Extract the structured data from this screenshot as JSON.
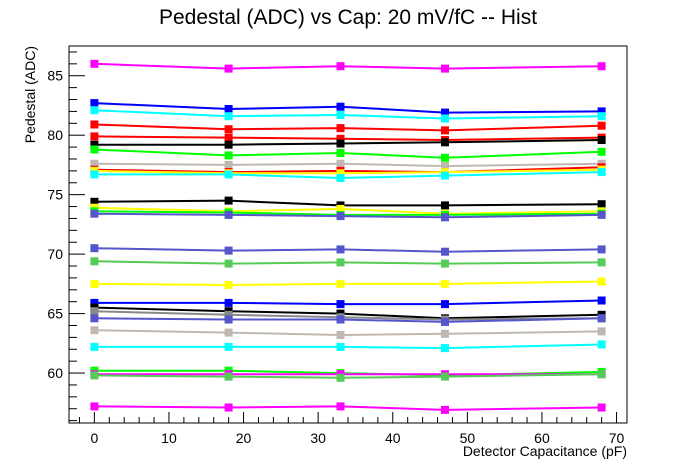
{
  "chart_data": {
    "type": "line",
    "title": "Pedestal (ADC) vs Cap: 20 mV/fC -- Hist",
    "xlabel": "Detector Capacitance (pF)",
    "ylabel": "Pedestal (ADC)",
    "xlim": [
      -3.4,
      71.4
    ],
    "ylim": [
      55.8,
      87.5
    ],
    "x": [
      0,
      18,
      33,
      47,
      68
    ],
    "xticks": [
      0,
      10,
      20,
      30,
      40,
      50,
      60,
      70
    ],
    "yticks": [
      60,
      65,
      70,
      75,
      80,
      85
    ],
    "grid": false,
    "legend": "none",
    "series": [
      {
        "color": "#ff00ff",
        "values": [
          86.0,
          85.6,
          85.8,
          85.6,
          85.8
        ]
      },
      {
        "color": "#0000ff",
        "values": [
          82.7,
          82.2,
          82.4,
          81.9,
          82.0
        ]
      },
      {
        "color": "#00ffff",
        "values": [
          82.1,
          81.6,
          81.7,
          81.4,
          81.6
        ]
      },
      {
        "color": "#ff0000",
        "values": [
          80.9,
          80.5,
          80.6,
          80.4,
          80.8
        ]
      },
      {
        "color": "#ff0000",
        "values": [
          79.9,
          79.8,
          79.7,
          79.6,
          79.8
        ]
      },
      {
        "color": "#000000",
        "values": [
          79.2,
          79.2,
          79.3,
          79.4,
          79.6
        ]
      },
      {
        "color": "#00ff00",
        "values": [
          78.8,
          78.3,
          78.5,
          78.1,
          78.6
        ]
      },
      {
        "color": "#c0b8b0",
        "values": [
          77.6,
          77.5,
          77.6,
          77.4,
          77.6
        ]
      },
      {
        "color": "#ff0000",
        "values": [
          77.1,
          76.9,
          77.0,
          76.9,
          77.3
        ]
      },
      {
        "color": "#ffff00",
        "values": [
          77.0,
          76.8,
          76.8,
          76.9,
          77.1
        ]
      },
      {
        "color": "#00ffff",
        "values": [
          76.7,
          76.7,
          76.4,
          76.6,
          76.9
        ]
      },
      {
        "color": "#000000",
        "values": [
          74.4,
          74.5,
          74.1,
          74.1,
          74.2
        ]
      },
      {
        "color": "#ffff00",
        "values": [
          73.9,
          73.6,
          73.8,
          73.4,
          73.6
        ]
      },
      {
        "color": "#00ff00",
        "values": [
          73.6,
          73.5,
          73.3,
          73.3,
          73.4
        ]
      },
      {
        "color": "#5555cc",
        "values": [
          73.4,
          73.3,
          73.2,
          73.1,
          73.3
        ]
      },
      {
        "color": "#5555cc",
        "values": [
          70.5,
          70.3,
          70.4,
          70.2,
          70.4
        ]
      },
      {
        "color": "#55cc55",
        "values": [
          69.4,
          69.2,
          69.3,
          69.2,
          69.3
        ]
      },
      {
        "color": "#ffff00",
        "values": [
          67.5,
          67.4,
          67.5,
          67.5,
          67.7
        ]
      },
      {
        "color": "#0000ff",
        "values": [
          65.9,
          65.9,
          65.8,
          65.8,
          66.1
        ]
      },
      {
        "color": "#000000",
        "values": [
          65.5,
          65.2,
          65.0,
          64.6,
          64.9
        ]
      },
      {
        "color": "#888888",
        "values": [
          65.2,
          64.9,
          64.7,
          64.5,
          64.6
        ]
      },
      {
        "color": "#5555cc",
        "values": [
          64.6,
          64.5,
          64.5,
          64.3,
          64.6
        ]
      },
      {
        "color": "#c0b8b0",
        "values": [
          63.6,
          63.4,
          63.2,
          63.3,
          63.5
        ]
      },
      {
        "color": "#00ffff",
        "values": [
          62.2,
          62.2,
          62.2,
          62.1,
          62.4
        ]
      },
      {
        "color": "#00ff00",
        "values": [
          60.2,
          60.2,
          60.0,
          59.8,
          60.1
        ]
      },
      {
        "color": "#ff00ff",
        "values": [
          59.9,
          59.9,
          59.9,
          59.9,
          59.9
        ]
      },
      {
        "color": "#55cc55",
        "values": [
          59.8,
          59.7,
          59.6,
          59.7,
          59.9
        ]
      },
      {
        "color": "#ff00ff",
        "values": [
          57.2,
          57.1,
          57.2,
          56.9,
          57.1
        ]
      }
    ]
  }
}
